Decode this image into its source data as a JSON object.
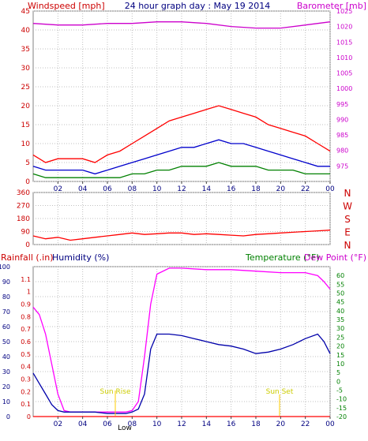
{
  "chart_data": [
    {
      "type": "line",
      "title": "24 hour graph day : May 19 2014",
      "left_axis_label": "Windspeed [mph]",
      "right_axis_label": "Barometer [mb]",
      "xticks": [
        "02",
        "04",
        "06",
        "08",
        "10",
        "12",
        "14",
        "16",
        "18",
        "20",
        "22",
        "00"
      ],
      "left_ylim": [
        0,
        45
      ],
      "left_yticks": [
        0,
        5,
        10,
        15,
        20,
        25,
        30,
        35,
        40,
        45
      ],
      "right_ylim": [
        970,
        1025
      ],
      "right_yticks": [
        975,
        980,
        985,
        990,
        995,
        1000,
        1005,
        1010,
        1015,
        1020,
        1025
      ],
      "grid": true,
      "series": [
        {
          "color": "#ff0000",
          "x": [
            0,
            1,
            2,
            3,
            4,
            5,
            6,
            7,
            8,
            9,
            10,
            11,
            12,
            13,
            14,
            15,
            16,
            17,
            18,
            19,
            20,
            21,
            22,
            23,
            24
          ],
          "values": [
            7,
            5,
            6,
            6,
            6,
            5,
            7,
            8,
            10,
            12,
            14,
            16,
            17,
            18,
            19,
            20,
            19,
            18,
            17,
            15,
            14,
            13,
            12,
            10,
            8
          ]
        },
        {
          "color": "#0000cc",
          "x": [
            0,
            1,
            2,
            3,
            4,
            5,
            6,
            7,
            8,
            9,
            10,
            11,
            12,
            13,
            14,
            15,
            16,
            17,
            18,
            19,
            20,
            21,
            22,
            23,
            24
          ],
          "values": [
            4,
            3,
            3,
            3,
            3,
            2,
            3,
            4,
            5,
            6,
            7,
            8,
            9,
            9,
            10,
            11,
            10,
            10,
            9,
            8,
            7,
            6,
            5,
            4,
            4
          ]
        },
        {
          "color": "#008000",
          "x": [
            0,
            1,
            2,
            3,
            4,
            5,
            6,
            7,
            8,
            9,
            10,
            11,
            12,
            13,
            14,
            15,
            16,
            17,
            18,
            19,
            20,
            21,
            22,
            23,
            24
          ],
          "values": [
            2,
            1,
            1,
            1,
            1,
            1,
            1,
            1,
            2,
            2,
            3,
            3,
            4,
            4,
            4,
            5,
            4,
            4,
            4,
            3,
            3,
            3,
            2,
            2,
            2
          ]
        },
        {
          "color": "#cc00cc",
          "axis": "right",
          "x": [
            0,
            2,
            4,
            6,
            8,
            10,
            12,
            14,
            16,
            18,
            20,
            22,
            24
          ],
          "values": [
            1021,
            1020.5,
            1020.5,
            1021,
            1021,
            1021.5,
            1021.5,
            1021,
            1020,
            1019.5,
            1019.5,
            1020.5,
            1021.5
          ]
        }
      ]
    },
    {
      "type": "line",
      "right_labels": [
        "N",
        "W",
        "S",
        "E",
        "N"
      ],
      "xticks": [
        "02",
        "04",
        "06",
        "08",
        "10",
        "12",
        "14",
        "16",
        "18",
        "20",
        "22",
        "00"
      ],
      "ylim": [
        0,
        360
      ],
      "yticks": [
        0,
        90,
        180,
        270,
        360
      ],
      "grid": true,
      "series": [
        {
          "color": "#ff0000",
          "x": [
            0,
            1,
            2,
            3,
            4,
            5,
            6,
            7,
            8,
            9,
            10,
            11,
            12,
            13,
            14,
            15,
            16,
            17,
            18,
            19,
            20,
            21,
            22,
            23,
            24
          ],
          "values": [
            60,
            40,
            50,
            30,
            40,
            50,
            60,
            70,
            80,
            70,
            75,
            80,
            80,
            70,
            75,
            70,
            65,
            60,
            70,
            75,
            80,
            85,
            90,
            95,
            100
          ]
        }
      ]
    },
    {
      "type": "line",
      "left_axis_labels": [
        "Rainfall (.in)",
        "Humidity (%)"
      ],
      "right_axis_labels": [
        "Temperature (°F)",
        "Dew Point (°F)"
      ],
      "xticks": [
        "02",
        "04",
        "06",
        "08",
        "10",
        "12",
        "14",
        "16",
        "18",
        "20",
        "22",
        "00"
      ],
      "humidity_ylim": [
        0,
        100
      ],
      "humidity_yticks": [
        0,
        10,
        20,
        30,
        40,
        50,
        60,
        70,
        80,
        90,
        100
      ],
      "rain_ylim": [
        0,
        1.2
      ],
      "rain_yticks": [
        "0",
        "0.1",
        "0.2",
        "0.3",
        "0.4",
        "0.5",
        "0.6",
        "0.7",
        "0.8",
        "0.9",
        "1",
        "1.1"
      ],
      "temp_ylim": [
        -20,
        65
      ],
      "temp_yticks": [
        -20,
        -15,
        -10,
        -5,
        0,
        5,
        10,
        15,
        20,
        25,
        30,
        35,
        40,
        45,
        50,
        55,
        60
      ],
      "annotations": [
        "Sun Rise",
        "Sun Set",
        "Low"
      ],
      "grid": true,
      "series": [
        {
          "color": "#ff00ff",
          "x": [
            0,
            0.5,
            1,
            1.5,
            2,
            2.5,
            3,
            4,
            5,
            6,
            7,
            7.5,
            8,
            8.5,
            9,
            9.5,
            10,
            11,
            12,
            14,
            16,
            18,
            20,
            22,
            23,
            23.5,
            24
          ],
          "values": [
            73,
            68,
            55,
            35,
            15,
            4,
            3,
            3,
            3,
            3,
            3,
            3,
            4,
            10,
            40,
            75,
            95,
            99,
            99,
            98,
            98,
            97,
            96,
            96,
            94,
            90,
            85
          ]
        },
        {
          "color": "#0000aa",
          "x": [
            0,
            0.5,
            1,
            1.5,
            2,
            2.5,
            3,
            4,
            5,
            6,
            7,
            7.5,
            8,
            8.5,
            9,
            9.5,
            10,
            11,
            12,
            13,
            14,
            15,
            16,
            17,
            18,
            19,
            20,
            21,
            22,
            23,
            23.5,
            24
          ],
          "values": [
            29,
            22,
            15,
            8,
            4,
            3,
            3,
            3,
            3,
            2,
            2,
            2,
            3,
            5,
            15,
            45,
            55,
            55,
            54,
            52,
            50,
            48,
            47,
            45,
            42,
            43,
            45,
            48,
            52,
            55,
            50,
            42
          ]
        },
        {
          "color": "#ff0000",
          "x": [
            0,
            24
          ],
          "values": [
            0,
            0
          ]
        }
      ]
    }
  ]
}
